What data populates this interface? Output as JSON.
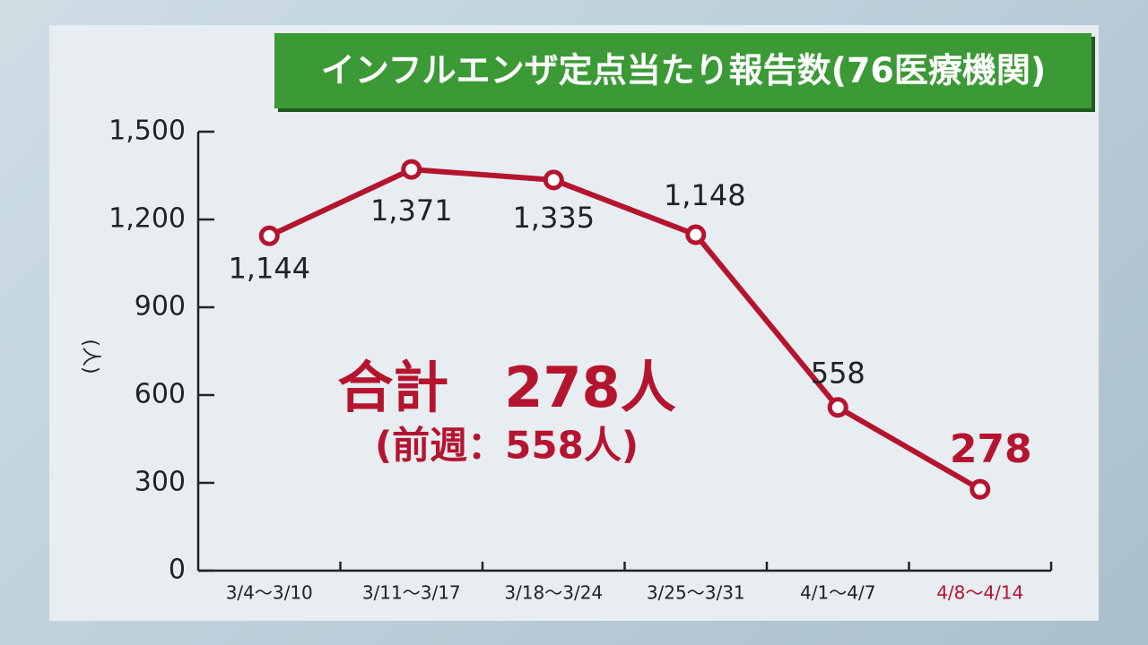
{
  "chart_data": {
    "type": "line",
    "title": "インフルエンザ定点当たり報告数(76医療機関)",
    "y_label": "(人)",
    "annotations": [
      "合計　278人",
      "(前週：558人)"
    ],
    "categories": [
      "3/4〜3/10",
      "3/11〜3/17",
      "3/18〜3/24",
      "3/25〜3/31",
      "4/1〜4/7",
      "4/8〜4/14"
    ],
    "series": [
      {
        "name": "報告数",
        "color": "#b5142f",
        "values": [
          1144,
          1371,
          1335,
          1148,
          558,
          278
        ],
        "value_labels": [
          "1,144",
          "1,371",
          "1,335",
          "1,148",
          "558",
          "278"
        ]
      }
    ],
    "highlight_color": "#b5142f",
    "ylim": [
      0,
      1500
    ],
    "yticks": [
      0,
      300,
      600,
      900,
      {
        "value": 1200,
        "label": "1,200"
      },
      {
        "value": 1500,
        "label": "1,500"
      }
    ],
    "grid": false
  }
}
